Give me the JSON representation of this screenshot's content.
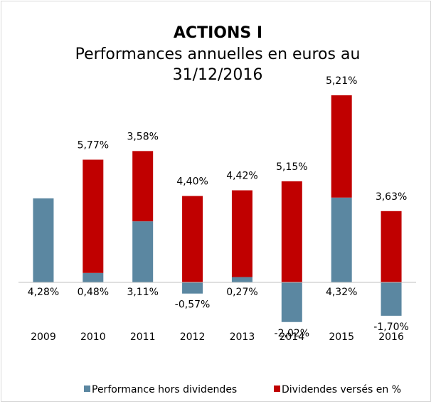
{
  "chart_data": {
    "type": "stacked-bar",
    "title": "ACTIONS I",
    "subtitle": "Performances annuelles en euros au 31/12/2016",
    "categories": [
      "2009",
      "2010",
      "2011",
      "2012",
      "2013",
      "2014",
      "2015",
      "2016"
    ],
    "series": [
      {
        "name": "Performance hors dividendes",
        "color": "#5b87a1",
        "values": [
          4.28,
          0.48,
          3.11,
          -0.57,
          0.27,
          -2.02,
          4.32,
          -1.7
        ],
        "value_labels": [
          "4,28%",
          "0,48%",
          "3,11%",
          "-0,57%",
          "0,27%",
          "-2,02%",
          "4,32%",
          "-1,70%"
        ]
      },
      {
        "name": "Dividendes versés en %",
        "color": "#c00000",
        "values": [
          null,
          5.77,
          3.58,
          4.4,
          4.42,
          5.15,
          5.21,
          3.63
        ],
        "value_labels": [
          null,
          "5,77%",
          "3,58%",
          "4,40%",
          "4,42%",
          "5,15%",
          "5,21%",
          "3,63%"
        ]
      }
    ],
    "legend": "bottom"
  }
}
